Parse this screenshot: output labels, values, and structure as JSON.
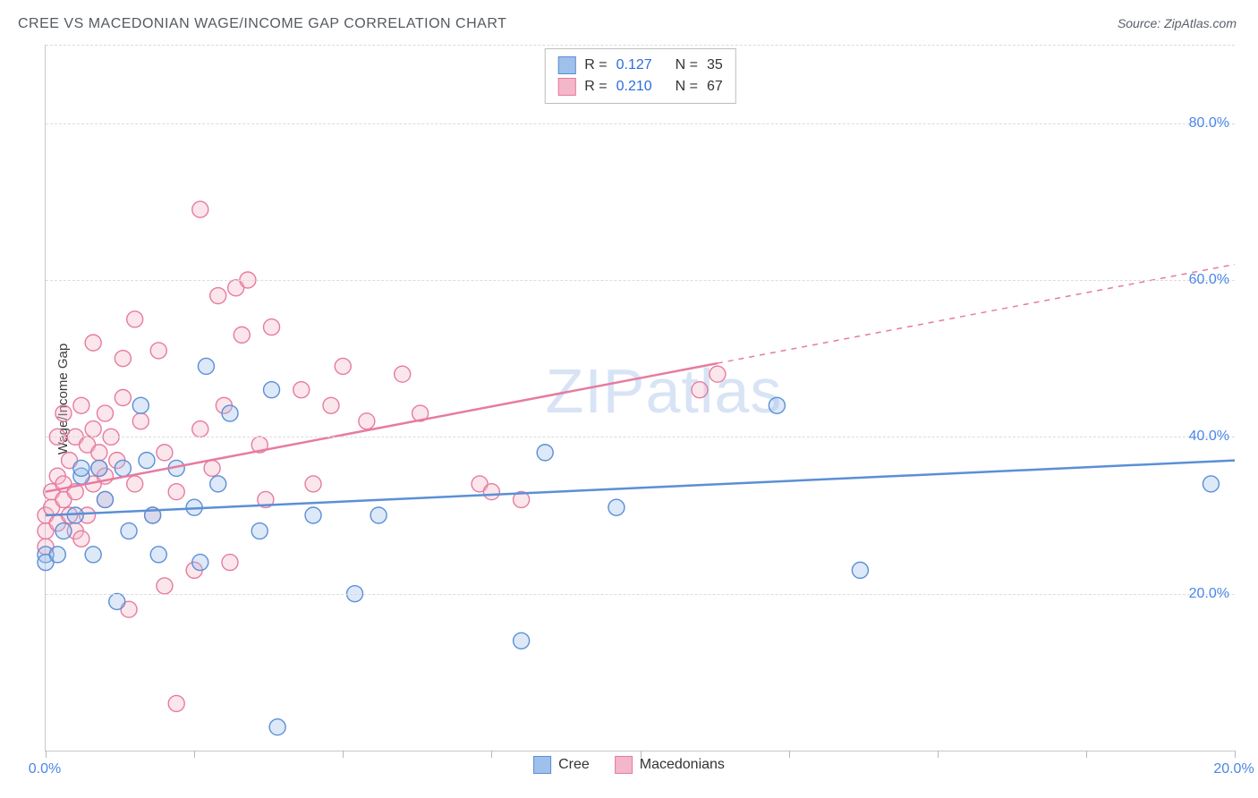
{
  "title": "CREE VS MACEDONIAN WAGE/INCOME GAP CORRELATION CHART",
  "source_label": "Source: ",
  "source_name": "ZipAtlas.com",
  "y_axis_label": "Wage/Income Gap",
  "watermark_a": "ZIP",
  "watermark_b": "atlas",
  "chart": {
    "type": "scatter",
    "background_color": "#ffffff",
    "grid_color": "#dcdcdc",
    "axis_color": "#c8c8c8",
    "tick_label_color": "#4a86e8",
    "xlim": [
      0,
      20
    ],
    "ylim": [
      0,
      90
    ],
    "x_ticks": [
      0,
      2.5,
      5,
      7.5,
      10,
      12.5,
      15,
      17.5,
      20
    ],
    "x_tick_labels_shown": {
      "0": "0.0%",
      "20": "20.0%"
    },
    "y_gridlines": [
      20,
      40,
      60,
      80
    ],
    "y_tick_labels": {
      "20": "20.0%",
      "40": "40.0%",
      "60": "60.0%",
      "80": "80.0%"
    },
    "marker_radius": 9,
    "marker_stroke_width": 1.4,
    "marker_fill_opacity": 0.35,
    "trend_line_width": 2.5,
    "series": {
      "cree": {
        "label": "Cree",
        "color_stroke": "#5b8fd6",
        "color_fill": "#9fc0ea",
        "R": "0.127",
        "N": "35",
        "trend": {
          "x1": 0,
          "y1": 30,
          "x2": 20,
          "y2": 37,
          "dashed_from_x": null
        },
        "points": [
          [
            0.0,
            25
          ],
          [
            0.0,
            24
          ],
          [
            0.2,
            25
          ],
          [
            0.3,
            28
          ],
          [
            0.5,
            30
          ],
          [
            0.6,
            35
          ],
          [
            0.6,
            36
          ],
          [
            0.8,
            25
          ],
          [
            0.9,
            36
          ],
          [
            1.0,
            32
          ],
          [
            1.2,
            19
          ],
          [
            1.3,
            36
          ],
          [
            1.4,
            28
          ],
          [
            1.6,
            44
          ],
          [
            1.7,
            37
          ],
          [
            1.8,
            30
          ],
          [
            1.9,
            25
          ],
          [
            2.2,
            36
          ],
          [
            2.5,
            31
          ],
          [
            2.6,
            24
          ],
          [
            2.7,
            49
          ],
          [
            2.9,
            34
          ],
          [
            3.1,
            43
          ],
          [
            3.6,
            28
          ],
          [
            3.8,
            46
          ],
          [
            3.9,
            3
          ],
          [
            4.5,
            30
          ],
          [
            5.2,
            20
          ],
          [
            5.6,
            30
          ],
          [
            8.0,
            14
          ],
          [
            8.4,
            38
          ],
          [
            9.6,
            31
          ],
          [
            12.3,
            44
          ],
          [
            13.7,
            23
          ],
          [
            19.6,
            34
          ]
        ]
      },
      "macedonians": {
        "label": "Macedonians",
        "color_stroke": "#e77ba0",
        "color_fill": "#f3b7c9",
        "R": "0.210",
        "N": "67",
        "trend": {
          "x1": 0,
          "y1": 33,
          "x2": 20,
          "y2": 62,
          "dashed_from_x": 11.3
        },
        "points": [
          [
            0.0,
            26
          ],
          [
            0.0,
            28
          ],
          [
            0.0,
            30
          ],
          [
            0.1,
            31
          ],
          [
            0.1,
            33
          ],
          [
            0.2,
            29
          ],
          [
            0.2,
            35
          ],
          [
            0.2,
            40
          ],
          [
            0.3,
            32
          ],
          [
            0.3,
            34
          ],
          [
            0.3,
            43
          ],
          [
            0.4,
            30
          ],
          [
            0.4,
            37
          ],
          [
            0.5,
            28
          ],
          [
            0.5,
            33
          ],
          [
            0.5,
            40
          ],
          [
            0.6,
            27
          ],
          [
            0.6,
            44
          ],
          [
            0.7,
            30
          ],
          [
            0.7,
            39
          ],
          [
            0.8,
            34
          ],
          [
            0.8,
            41
          ],
          [
            0.8,
            52
          ],
          [
            0.9,
            36
          ],
          [
            0.9,
            38
          ],
          [
            1.0,
            32
          ],
          [
            1.0,
            35
          ],
          [
            1.0,
            43
          ],
          [
            1.1,
            40
          ],
          [
            1.2,
            37
          ],
          [
            1.3,
            45
          ],
          [
            1.3,
            50
          ],
          [
            1.4,
            18
          ],
          [
            1.5,
            34
          ],
          [
            1.5,
            55
          ],
          [
            1.6,
            42
          ],
          [
            1.8,
            30
          ],
          [
            1.9,
            51
          ],
          [
            2.0,
            21
          ],
          [
            2.0,
            38
          ],
          [
            2.2,
            33
          ],
          [
            2.2,
            6
          ],
          [
            2.5,
            23
          ],
          [
            2.6,
            41
          ],
          [
            2.6,
            69
          ],
          [
            2.8,
            36
          ],
          [
            2.9,
            58
          ],
          [
            3.0,
            44
          ],
          [
            3.1,
            24
          ],
          [
            3.2,
            59
          ],
          [
            3.3,
            53
          ],
          [
            3.4,
            60
          ],
          [
            3.6,
            39
          ],
          [
            3.7,
            32
          ],
          [
            3.8,
            54
          ],
          [
            4.3,
            46
          ],
          [
            4.5,
            34
          ],
          [
            4.8,
            44
          ],
          [
            5.0,
            49
          ],
          [
            5.4,
            42
          ],
          [
            6.0,
            48
          ],
          [
            6.3,
            43
          ],
          [
            7.3,
            34
          ],
          [
            7.5,
            33
          ],
          [
            8.0,
            32
          ],
          [
            11.0,
            46
          ],
          [
            11.3,
            48
          ]
        ]
      }
    }
  },
  "legend_top": {
    "r_label": "R  =",
    "n_label": "N  ="
  }
}
